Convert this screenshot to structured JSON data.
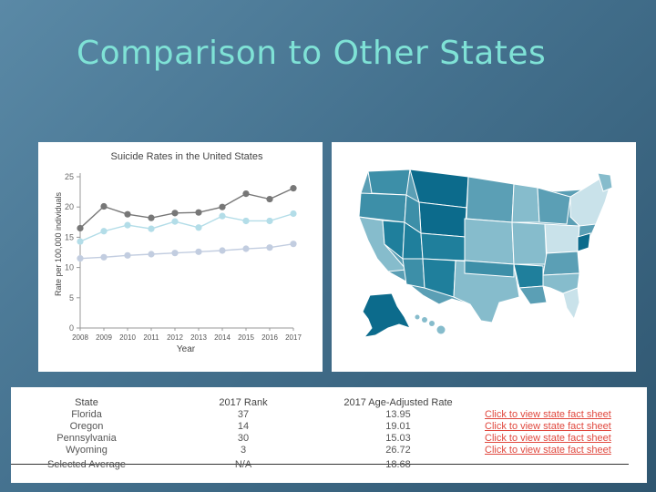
{
  "slide": {
    "title": "Comparison to Other States"
  },
  "chart_data": {
    "type": "line",
    "title": "Suicide Rates in the United States",
    "xlabel": "Year",
    "ylabel": "Rate per 100,000 individuals",
    "x": [
      2008,
      2009,
      2010,
      2011,
      2012,
      2013,
      2014,
      2015,
      2016,
      2017
    ],
    "xtick_labels": [
      "2008",
      "2009",
      "2010",
      "2011",
      "2012",
      "2013",
      "2014",
      "2015",
      "2016",
      "2017"
    ],
    "yticks": [
      0,
      5,
      10,
      15,
      20,
      25
    ],
    "ylim": [
      0,
      25
    ],
    "series": [
      {
        "name": "series-high",
        "color": "#777777",
        "values": [
          16.5,
          20.1,
          18.8,
          18.2,
          19.0,
          19.1,
          20.0,
          22.2,
          21.3,
          23.1
        ]
      },
      {
        "name": "series-mid",
        "color": "#b3dde8",
        "values": [
          14.3,
          16.0,
          17.0,
          16.4,
          17.6,
          16.6,
          18.5,
          17.7,
          17.7,
          18.9
        ]
      },
      {
        "name": "series-low",
        "color": "#c2cde0",
        "values": [
          11.5,
          11.7,
          12.0,
          12.2,
          12.4,
          12.6,
          12.8,
          13.1,
          13.3,
          13.9
        ]
      }
    ]
  },
  "map": {
    "description_colors": {
      "dark": "#0c6b8c",
      "mid": "#3d8fa8",
      "light": "#86bccc",
      "pale": "#c9e2ea"
    }
  },
  "table": {
    "headers": {
      "state": "State",
      "rank": "2017 Rank",
      "rate": "2017 Age-Adjusted Rate"
    },
    "rows": [
      {
        "state": "Florida",
        "rank": "37",
        "rate": "13.95",
        "link": "Click to view state fact sheet"
      },
      {
        "state": "Oregon",
        "rank": "14",
        "rate": "19.01",
        "link": "Click to view state fact sheet"
      },
      {
        "state": "Pennsylvania",
        "rank": "30",
        "rate": "15.03",
        "link": "Click to view state fact sheet"
      },
      {
        "state": "Wyoming",
        "rank": "3",
        "rate": "26.72",
        "link": "Click to view state fact sheet"
      }
    ],
    "average": {
      "state": "Selected Average",
      "rank": "N/A",
      "rate": "18.68"
    }
  }
}
